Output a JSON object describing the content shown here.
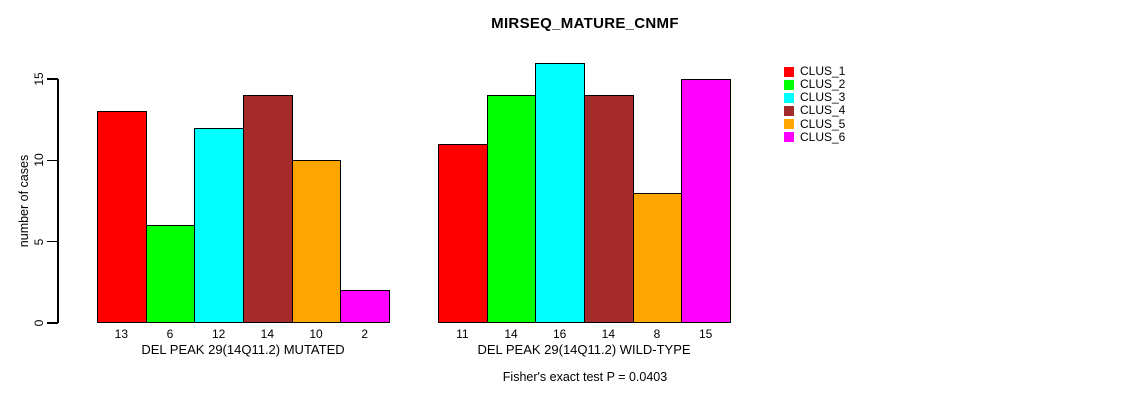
{
  "chart_data": {
    "type": "bar",
    "title": "MIRSEQ_MATURE_CNMF",
    "xlabel": "",
    "ylabel": "number of cases",
    "ylim": [
      0,
      16
    ],
    "yticks": [
      0,
      5,
      10,
      15
    ],
    "grid": false,
    "legend_position": "right",
    "legend": [
      {
        "name": "CLUS_1",
        "color": "#FF0000"
      },
      {
        "name": "CLUS_2",
        "color": "#00FF00"
      },
      {
        "name": "CLUS_3",
        "color": "#00FFFF"
      },
      {
        "name": "CLUS_4",
        "color": "#A52A2A"
      },
      {
        "name": "CLUS_5",
        "color": "#FFA500"
      },
      {
        "name": "CLUS_6",
        "color": "#FF00FF"
      }
    ],
    "groups": [
      {
        "label": "DEL PEAK 29(14Q11.2) MUTATED",
        "bar_labels": [
          "13",
          "6",
          "12",
          "14",
          "10",
          "2"
        ],
        "values": [
          13,
          6,
          12,
          14,
          10,
          2
        ]
      },
      {
        "label": "DEL PEAK 29(14Q11.2) WILD-TYPE",
        "bar_labels": [
          "11",
          "14",
          "16",
          "14",
          "8",
          "15"
        ],
        "values": [
          11,
          14,
          16,
          14,
          8,
          15
        ]
      }
    ],
    "annotation": "Fisher's exact test P = 0.0403"
  }
}
